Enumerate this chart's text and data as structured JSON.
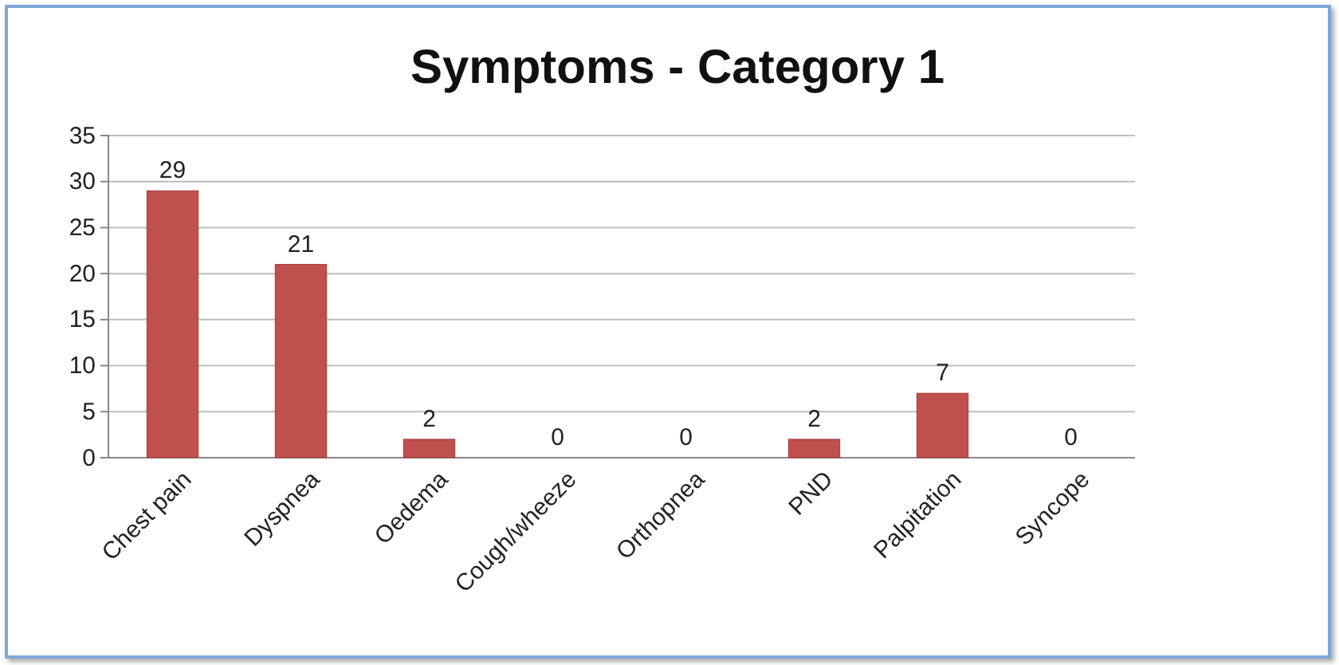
{
  "chart_data": {
    "type": "bar",
    "title": "Symptoms - Category 1",
    "categories": [
      "Chest pain",
      "Dyspnea",
      "Oedema",
      "Cough/wheeze",
      "Orthopnea",
      "PND",
      "Palpitation",
      "Syncope"
    ],
    "values": [
      29,
      21,
      2,
      0,
      0,
      2,
      7,
      0
    ],
    "color": "#c0504d",
    "ylim": [
      0,
      35
    ],
    "yticks": [
      0,
      5,
      10,
      15,
      20,
      25,
      30,
      35
    ],
    "grid": "y",
    "data_labels": true
  }
}
